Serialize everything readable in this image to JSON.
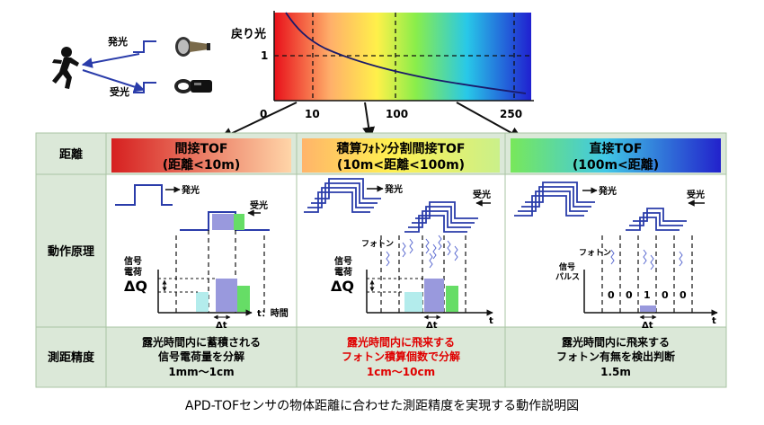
{
  "top": {
    "emit_label": "発光",
    "receive_label": "受光",
    "graph_ylabel": "戻り光",
    "graph_y_tick": "1",
    "graph_x_ticks": [
      "0",
      "10",
      "100",
      "250"
    ]
  },
  "table": {
    "row_labels": [
      "距離",
      "動作原理",
      "測距精度"
    ],
    "columns": [
      {
        "title_line1": "間接TOF",
        "title_line2": "(距離<10m)",
        "accuracy": [
          "露光時間内に蓄積される",
          "信号電荷量を分解",
          "1mm～1cm"
        ],
        "accuracy_color": "#111111"
      },
      {
        "title_line1": "積算ﾌｫﾄﾝ分割間接TOF",
        "title_line2": "(10m<距離<100m)",
        "accuracy": [
          "露光時間内に飛来する",
          "フォトン積算個数で分解",
          "1cm～10cm"
        ],
        "accuracy_color": "#e00000"
      },
      {
        "title_line1": "直接TOF",
        "title_line2": "(100m<距離)",
        "accuracy": [
          "露光時間内に飛来する",
          "フォトン有無を検出判断",
          "1.5m"
        ],
        "accuracy_color": "#111111"
      }
    ]
  },
  "diagrams": {
    "emit": "発光",
    "receive": "受光",
    "signal": "信号",
    "charge": "電荷",
    "delta_q": "ΔQ",
    "delta_t": "Δt",
    "t_axis_1": "t：時間",
    "t_axis": "t",
    "photon": "フォトン",
    "pulse_line1": "信号",
    "pulse_line2": "パルス",
    "bits": [
      "0",
      "0",
      "1",
      "0",
      "0"
    ]
  },
  "caption": "APD-TOFセンサの物体距離に合わせた測距精度を実現する動作説明図",
  "colors": {
    "table_header_bg": "#dbe8d8",
    "table_border": "#a9c4a3",
    "pulse_blue": "#2a3caa",
    "gauge_purple": "#9999dd",
    "gauge_green": "#66dd66",
    "gauge_cyan": "#b3ecec"
  }
}
